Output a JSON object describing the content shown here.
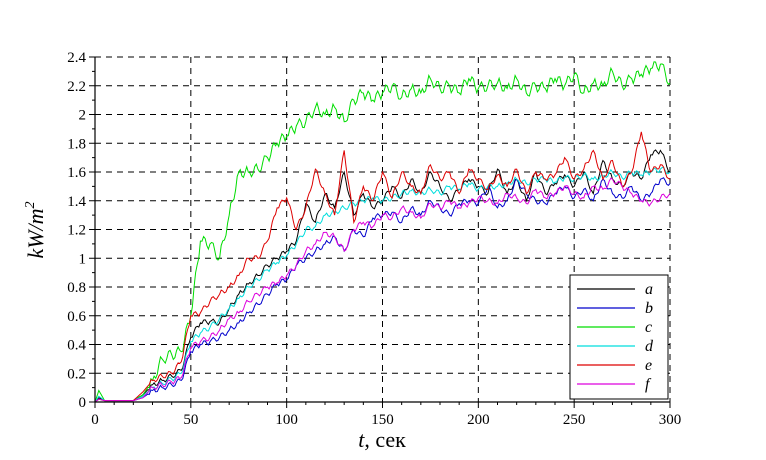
{
  "chart_data": {
    "type": "line",
    "title": "",
    "xlabel": "t, сек",
    "xlabel_var": "t",
    "xlabel_unit": ", сек",
    "ylabel": "kW/m^2",
    "xlim": [
      0,
      300
    ],
    "ylim": [
      0,
      2.4
    ],
    "xticks": [
      0,
      50,
      100,
      150,
      200,
      250,
      300
    ],
    "yticks": [
      0,
      0.2,
      0.4,
      0.6,
      0.8,
      1,
      1.2,
      1.4,
      1.6,
      1.8,
      2,
      2.2,
      2.4
    ],
    "ytick_labels": [
      "0",
      "0.2",
      "0.4",
      "0.6",
      "0.8",
      "1",
      "1.2",
      "1.4",
      "1.6",
      "1.8",
      "2",
      "2.2",
      "2.4"
    ],
    "grid": true,
    "grid_style": "dashed",
    "legend_position": "lower right",
    "x": [
      0,
      2,
      5,
      10,
      15,
      20,
      25,
      30,
      35,
      40,
      45,
      50,
      55,
      60,
      65,
      70,
      75,
      80,
      85,
      90,
      95,
      100,
      105,
      110,
      115,
      120,
      125,
      130,
      135,
      140,
      145,
      150,
      155,
      160,
      165,
      170,
      175,
      180,
      185,
      190,
      195,
      200,
      205,
      210,
      215,
      220,
      225,
      230,
      235,
      240,
      245,
      250,
      255,
      260,
      265,
      270,
      275,
      280,
      285,
      290,
      295,
      300
    ],
    "series": [
      {
        "name": "a",
        "color": "#000000",
        "values": [
          0,
          0.03,
          0.01,
          0.01,
          0.01,
          0.01,
          0.05,
          0.12,
          0.15,
          0.18,
          0.22,
          0.45,
          0.55,
          0.56,
          0.55,
          0.65,
          0.75,
          0.82,
          0.88,
          0.95,
          1.0,
          1.05,
          1.12,
          1.38,
          1.25,
          1.45,
          1.35,
          1.6,
          1.3,
          1.45,
          1.35,
          1.4,
          1.5,
          1.42,
          1.55,
          1.45,
          1.6,
          1.5,
          1.4,
          1.48,
          1.55,
          1.5,
          1.45,
          1.62,
          1.45,
          1.55,
          1.4,
          1.6,
          1.45,
          1.52,
          1.58,
          1.5,
          1.6,
          1.45,
          1.68,
          1.55,
          1.5,
          1.6,
          1.55,
          1.72,
          1.75,
          1.6
        ]
      },
      {
        "name": "b",
        "color": "#0000cc",
        "values": [
          0,
          0.02,
          0.01,
          0.01,
          0.01,
          0.01,
          0.03,
          0.08,
          0.1,
          0.12,
          0.15,
          0.35,
          0.4,
          0.42,
          0.45,
          0.5,
          0.55,
          0.62,
          0.68,
          0.75,
          0.82,
          0.85,
          0.95,
          1.0,
          1.05,
          1.1,
          1.15,
          1.05,
          1.2,
          1.15,
          1.28,
          1.3,
          1.32,
          1.25,
          1.35,
          1.3,
          1.4,
          1.35,
          1.3,
          1.38,
          1.4,
          1.38,
          1.5,
          1.35,
          1.4,
          1.55,
          1.45,
          1.4,
          1.38,
          1.45,
          1.5,
          1.42,
          1.48,
          1.4,
          1.55,
          1.45,
          1.42,
          1.5,
          1.4,
          1.45,
          1.55,
          1.52
        ]
      },
      {
        "name": "c",
        "color": "#00dd00",
        "values": [
          0,
          0.08,
          0.01,
          0.01,
          0.01,
          0.01,
          0.05,
          0.15,
          0.3,
          0.33,
          0.35,
          0.6,
          1.12,
          1.1,
          1.0,
          1.3,
          1.6,
          1.6,
          1.62,
          1.7,
          1.8,
          1.85,
          1.92,
          1.95,
          2.05,
          2.0,
          2.05,
          1.95,
          2.1,
          2.15,
          2.1,
          2.15,
          2.2,
          2.12,
          2.18,
          2.15,
          2.25,
          2.18,
          2.2,
          2.15,
          2.25,
          2.18,
          2.2,
          2.22,
          2.18,
          2.25,
          2.15,
          2.2,
          2.18,
          2.25,
          2.2,
          2.28,
          2.15,
          2.22,
          2.2,
          2.3,
          2.2,
          2.25,
          2.28,
          2.32,
          2.35,
          2.22
        ]
      },
      {
        "name": "d",
        "color": "#00dddd",
        "values": [
          0,
          0.04,
          0.01,
          0.01,
          0.01,
          0.01,
          0.04,
          0.1,
          0.13,
          0.16,
          0.2,
          0.42,
          0.48,
          0.52,
          0.58,
          0.65,
          0.72,
          0.8,
          0.85,
          0.92,
          0.97,
          1.02,
          1.1,
          1.2,
          1.22,
          1.3,
          1.32,
          1.35,
          1.38,
          1.4,
          1.42,
          1.4,
          1.42,
          1.45,
          1.47,
          1.45,
          1.48,
          1.45,
          1.5,
          1.48,
          1.52,
          1.48,
          1.5,
          1.5,
          1.52,
          1.55,
          1.52,
          1.55,
          1.55,
          1.53,
          1.56,
          1.55,
          1.58,
          1.55,
          1.57,
          1.6,
          1.56,
          1.6,
          1.58,
          1.6,
          1.62,
          1.6
        ]
      },
      {
        "name": "e",
        "color": "#dd0000",
        "values": [
          0,
          0.02,
          0.01,
          0.01,
          0.01,
          0.01,
          0.07,
          0.15,
          0.18,
          0.2,
          0.28,
          0.6,
          0.62,
          0.7,
          0.75,
          0.8,
          0.88,
          1.0,
          1.0,
          1.12,
          1.35,
          1.42,
          1.2,
          1.35,
          1.62,
          1.45,
          1.3,
          1.75,
          1.25,
          1.5,
          1.4,
          1.6,
          1.42,
          1.6,
          1.5,
          1.45,
          1.65,
          1.55,
          1.6,
          1.45,
          1.62,
          1.55,
          1.48,
          1.58,
          1.5,
          1.62,
          1.45,
          1.6,
          1.55,
          1.58,
          1.7,
          1.55,
          1.62,
          1.75,
          1.55,
          1.68,
          1.5,
          1.6,
          1.88,
          1.6,
          1.65,
          1.55
        ]
      },
      {
        "name": "f",
        "color": "#dd00dd",
        "values": [
          0,
          0.02,
          0.01,
          0.01,
          0.01,
          0.01,
          0.03,
          0.1,
          0.12,
          0.14,
          0.17,
          0.38,
          0.42,
          0.45,
          0.5,
          0.58,
          0.62,
          0.7,
          0.75,
          0.8,
          0.83,
          0.88,
          0.95,
          1.05,
          1.1,
          1.18,
          1.15,
          1.05,
          1.2,
          1.25,
          1.22,
          1.3,
          1.28,
          1.35,
          1.32,
          1.28,
          1.38,
          1.35,
          1.4,
          1.35,
          1.38,
          1.42,
          1.4,
          1.38,
          1.45,
          1.42,
          1.38,
          1.48,
          1.42,
          1.45,
          1.5,
          1.45,
          1.42,
          1.5,
          1.48,
          1.55,
          1.5,
          1.45,
          1.4,
          1.38,
          1.42,
          1.45
        ]
      }
    ]
  }
}
